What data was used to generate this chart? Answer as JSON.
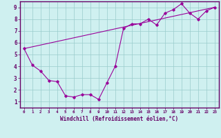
{
  "line1_x": [
    0,
    1,
    2,
    3,
    4,
    5,
    6,
    7,
    8,
    9,
    10,
    11,
    12,
    13,
    14,
    15,
    16,
    17,
    18,
    19,
    20,
    21,
    22,
    23
  ],
  "line1_y": [
    5.5,
    4.1,
    3.6,
    2.8,
    2.7,
    1.5,
    1.4,
    1.6,
    1.6,
    1.2,
    2.6,
    4.0,
    7.2,
    7.6,
    7.6,
    8.0,
    7.5,
    8.5,
    8.8,
    9.3,
    8.5,
    8.0,
    8.7,
    9.0
  ],
  "line2_x": [
    0,
    23
  ],
  "line2_y": [
    5.5,
    9.0
  ],
  "line_color": "#990099",
  "marker": "D",
  "marker_size": 1.8,
  "linewidth": 0.8,
  "xlabel": "Windchill (Refroidissement éolien,°C)",
  "xlabel_fontsize": 5.5,
  "ylabel_ticks": [
    1,
    2,
    3,
    4,
    5,
    6,
    7,
    8,
    9
  ],
  "xtick_labels": [
    "0",
    "1",
    "2",
    "3",
    "4",
    "5",
    "6",
    "7",
    "8",
    "9",
    "10",
    "11",
    "12",
    "13",
    "14",
    "15",
    "16",
    "17",
    "18",
    "19",
    "20",
    "21",
    "22",
    "23"
  ],
  "xlim": [
    -0.5,
    23.5
  ],
  "ylim": [
    0.5,
    9.5
  ],
  "bg_color": "#cff0f0",
  "grid_color": "#99cccc",
  "axis_color": "#660066",
  "tick_color": "#660066",
  "border_color": "#660066"
}
